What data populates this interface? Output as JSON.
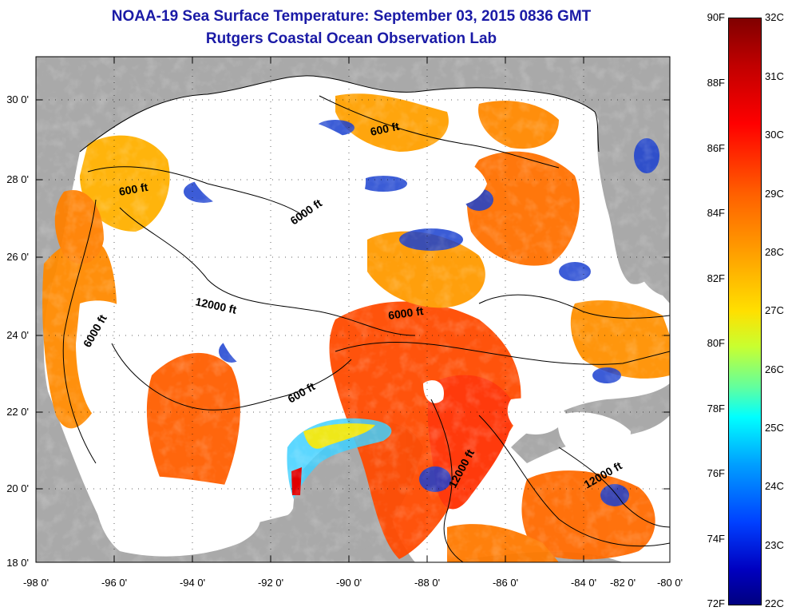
{
  "title": "NOAA-19 Sea Surface Temperature:  September 03, 2015 0836 GMT",
  "subtitle": "Rutgers Coastal Ocean Observation Lab",
  "lat_labels": [
    "30 0'",
    "28 0'",
    "26 0'",
    "24 0'",
    "22 0'",
    "20 0'",
    "18 0'"
  ],
  "lon_labels": [
    "-98 0'",
    "-96 0'",
    "-94 0'",
    "-92 0'",
    "-90 0'",
    "-88 0'",
    "-86 0'",
    "-84 0'",
    "-82 0'",
    "-80 0'"
  ],
  "contour_labels": [
    "600 ft",
    "600 ft",
    "6000 ft",
    "12000 ft",
    "6000 ft",
    "6000 ft",
    "600 ft",
    "12000 ft",
    "12000 ft"
  ],
  "colorbar": {
    "fahrenheit": [
      "90F",
      "88F",
      "86F",
      "84F",
      "82F",
      "80F",
      "78F",
      "76F",
      "74F",
      "72F"
    ],
    "celsius": [
      "32C",
      "31C",
      "30C",
      "29C",
      "28C",
      "27C",
      "26C",
      "25C",
      "24C",
      "23C",
      "22C"
    ]
  },
  "colors": {
    "land": "#a9a9a9",
    "cloud": "#ffffff",
    "title": "#1a1aa6"
  }
}
